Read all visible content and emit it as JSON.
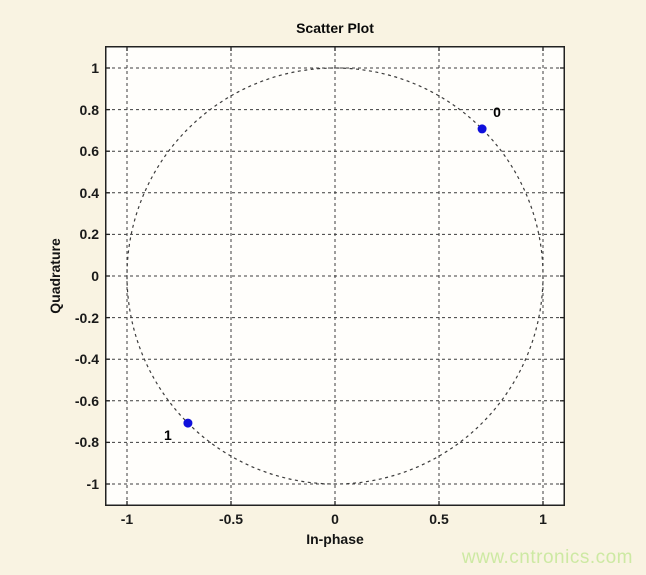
{
  "page": {
    "watermark": "www.cntronics.com"
  },
  "chart_data": {
    "type": "scatter",
    "title": "Scatter Plot",
    "xlabel": "In-phase",
    "ylabel": "Quadrature",
    "xlim": [
      -1.106,
      1.106
    ],
    "ylim": [
      -1.106,
      1.106
    ],
    "xticks": [
      -1,
      -0.5,
      0,
      0.5,
      1
    ],
    "xtick_labels": [
      "-1",
      "-0.5",
      "0",
      "0.5",
      "1"
    ],
    "yticks": [
      -1,
      -0.8,
      -0.6,
      -0.4,
      -0.2,
      0,
      0.2,
      0.4,
      0.6,
      0.8,
      1
    ],
    "ytick_labels": [
      "-1",
      "-0.8",
      "-0.6",
      "-0.4",
      "-0.2",
      "0",
      "0.2",
      "0.4",
      "0.6",
      "0.8",
      "1"
    ],
    "grid": "on-dashed",
    "legend": "none",
    "unit_circle": {
      "radius": 1,
      "line_style": "dashed"
    },
    "series": [
      {
        "name": "constellation-points",
        "marker": "filled-dot",
        "marker_color": "#0f0fdc",
        "points": [
          {
            "x": 0.7071,
            "y": 0.7071,
            "label": "0",
            "label_dx": 15,
            "label_dy": -17
          },
          {
            "x": -0.7071,
            "y": -0.7071,
            "label": "1",
            "label_dx": -20,
            "label_dy": 12
          }
        ]
      }
    ],
    "colors": {
      "figure_background": "#f9f3e2",
      "plot_background": "#fffefb",
      "grid": "#3c3c3c",
      "axis": "#222222",
      "text": "#1a1a1a",
      "marker": "#0f0fdc",
      "watermark": "#cde9a3"
    }
  }
}
